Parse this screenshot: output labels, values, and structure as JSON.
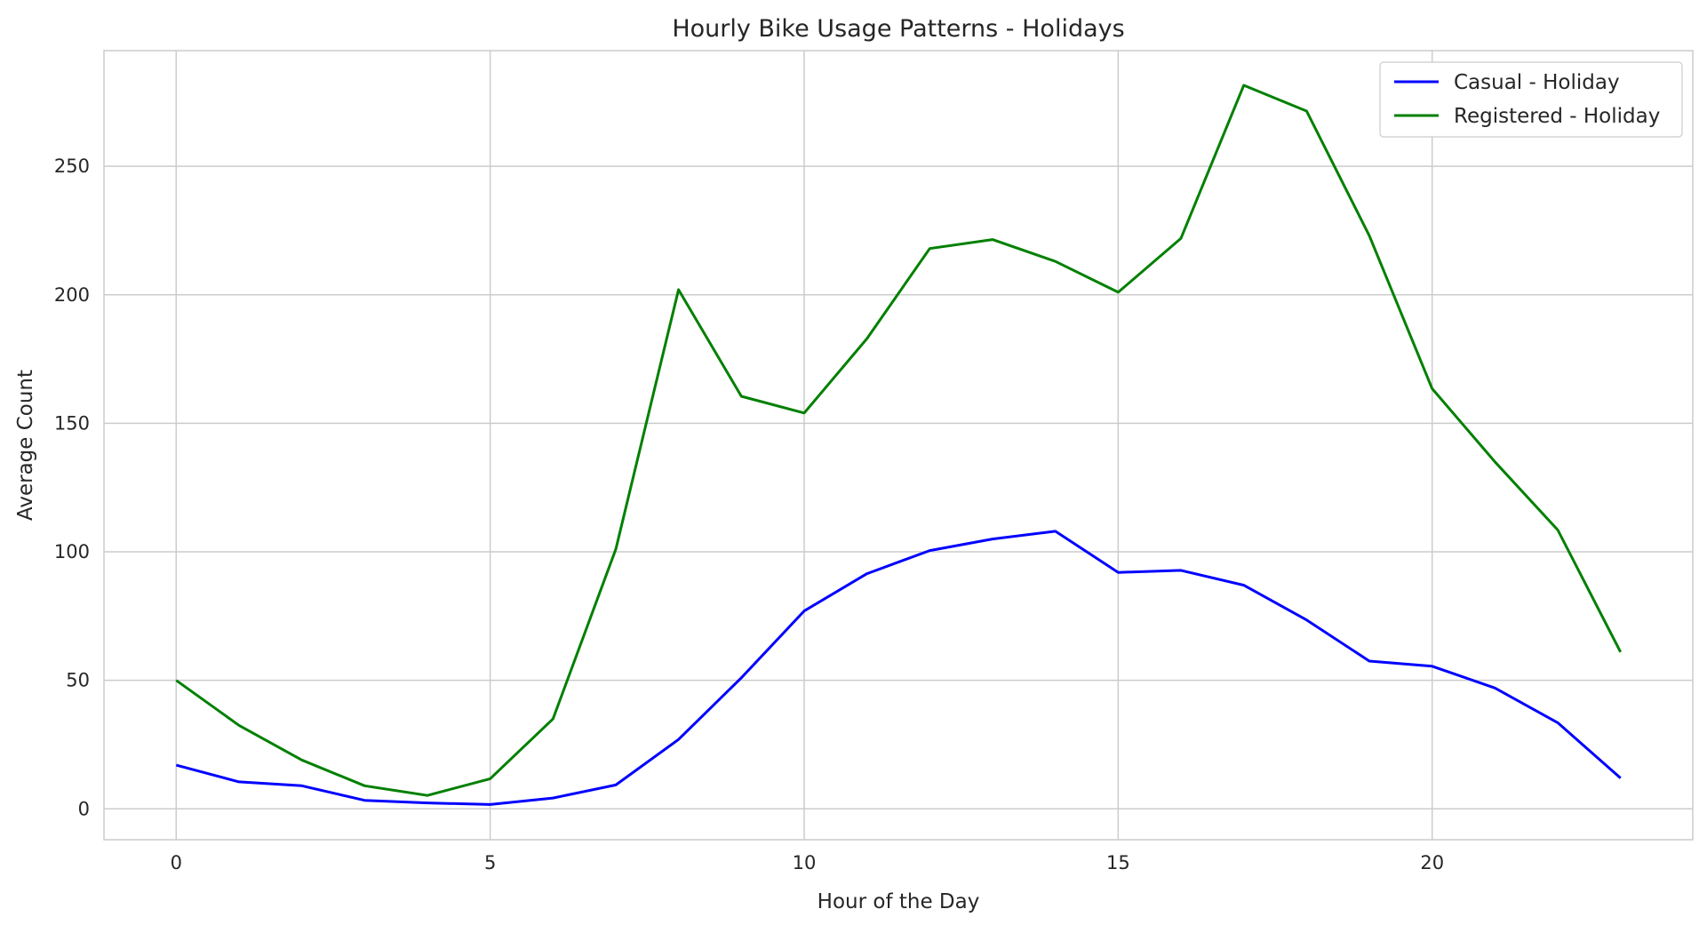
{
  "chart_data": {
    "type": "line",
    "title": "Hourly Bike Usage Patterns - Holidays",
    "xlabel": "Hour of the Day",
    "ylabel": "Average Count",
    "xlim": [
      -1.15,
      24.15
    ],
    "ylim": [
      -12,
      295
    ],
    "xticks": [
      0,
      5,
      10,
      15,
      20
    ],
    "yticks": [
      0,
      50,
      100,
      150,
      200,
      250
    ],
    "grid": true,
    "legend_position": "top-right",
    "x": [
      0,
      1,
      2,
      3,
      4,
      5,
      6,
      7,
      8,
      9,
      10,
      11,
      12,
      13,
      14,
      15,
      16,
      17,
      18,
      19,
      20,
      21,
      22,
      23
    ],
    "series": [
      {
        "name": "Casual - Holiday",
        "color": "#0000ff",
        "values": [
          17,
          10.5,
          9,
          3.3,
          2.3,
          1.7,
          4.2,
          9.3,
          27,
          51,
          77,
          91.5,
          100.5,
          105,
          108,
          92,
          92.8,
          87,
          73.5,
          57.5,
          55.5,
          47,
          33.5,
          12
        ]
      },
      {
        "name": "Registered - Holiday",
        "color": "#008000",
        "values": [
          50,
          32.5,
          19,
          9,
          5.2,
          11.7,
          35,
          101,
          202,
          160.5,
          154,
          183,
          218,
          221.5,
          213,
          201,
          222,
          281.5,
          271.5,
          223,
          163.5,
          135,
          108.5,
          61
        ]
      }
    ]
  }
}
